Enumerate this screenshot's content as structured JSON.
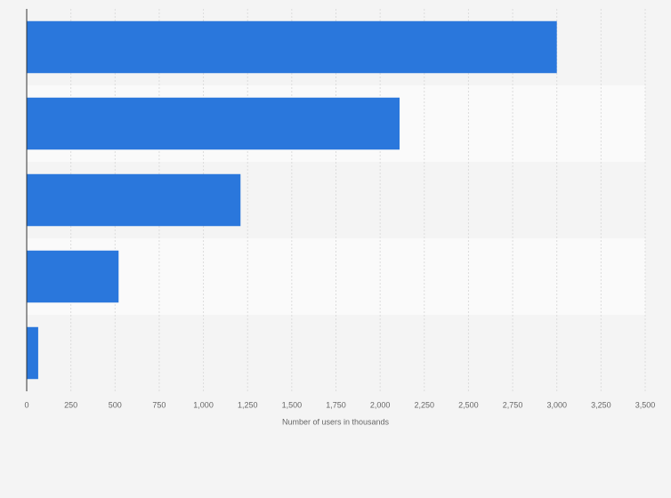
{
  "chart_data": {
    "type": "hbar",
    "categories": [
      null,
      null,
      null,
      null,
      null
    ],
    "values": [
      3000,
      2110,
      1210,
      520,
      65
    ],
    "color": "#2a77dc",
    "x_label": "Number of users in thousands",
    "xlim": [
      0,
      3500
    ],
    "xticks": [
      0,
      250,
      500,
      750,
      {
        "value": 1000,
        "label": "1,000"
      },
      {
        "value": 1250,
        "label": "1,250"
      },
      {
        "value": 1500,
        "label": "1,500"
      },
      {
        "value": 1750,
        "label": "1,750"
      },
      {
        "value": 2000,
        "label": "2,000"
      },
      {
        "value": 2250,
        "label": "2,250"
      },
      {
        "value": 2500,
        "label": "2,500"
      },
      {
        "value": 2750,
        "label": "2,750"
      },
      {
        "value": 3000,
        "label": "3,000"
      },
      {
        "value": 3250,
        "label": "3,250"
      },
      {
        "value": 3500,
        "label": "3,500"
      }
    ],
    "grid": true
  }
}
